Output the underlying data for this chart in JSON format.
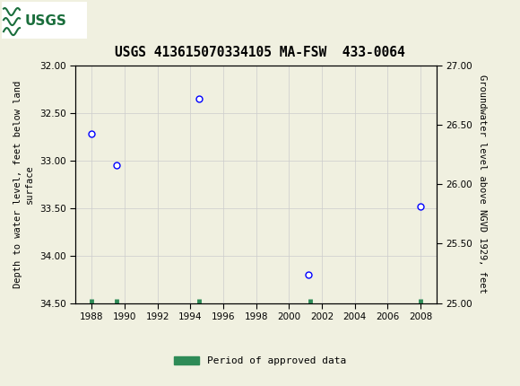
{
  "title": "USGS 413615070334105 MA-FSW  433-0064",
  "ylabel_left": "Depth to water level, feet below land\nsurface",
  "ylabel_right": "Groundwater level above NGVD 1929, feet",
  "bg_color": "#f0f0e0",
  "plot_bg": "#f0f0e0",
  "header_color": "#1a6e3c",
  "data_x": [
    1988.0,
    1989.5,
    1994.5,
    2001.2,
    2008.0
  ],
  "data_y_depth": [
    32.72,
    33.05,
    32.35,
    34.2,
    33.48
  ],
  "bar_x": [
    1988.0,
    1989.5,
    1994.5,
    2001.3,
    2008.0
  ],
  "xlim": [
    1987,
    2009
  ],
  "ylim_left": [
    34.5,
    32.0
  ],
  "ylim_right": [
    25.0,
    27.0
  ],
  "xticks": [
    1988,
    1990,
    1992,
    1994,
    1996,
    1998,
    2000,
    2002,
    2004,
    2006,
    2008
  ],
  "yticks_left": [
    32.0,
    32.5,
    33.0,
    33.5,
    34.0,
    34.5
  ],
  "yticks_right": [
    27.0,
    26.5,
    26.0,
    25.5,
    25.0
  ],
  "grid_color": "#cccccc",
  "marker_color": "blue",
  "marker_facecolor": "white",
  "marker_size": 5,
  "legend_label": "Period of approved data",
  "legend_color": "#2e8b57"
}
